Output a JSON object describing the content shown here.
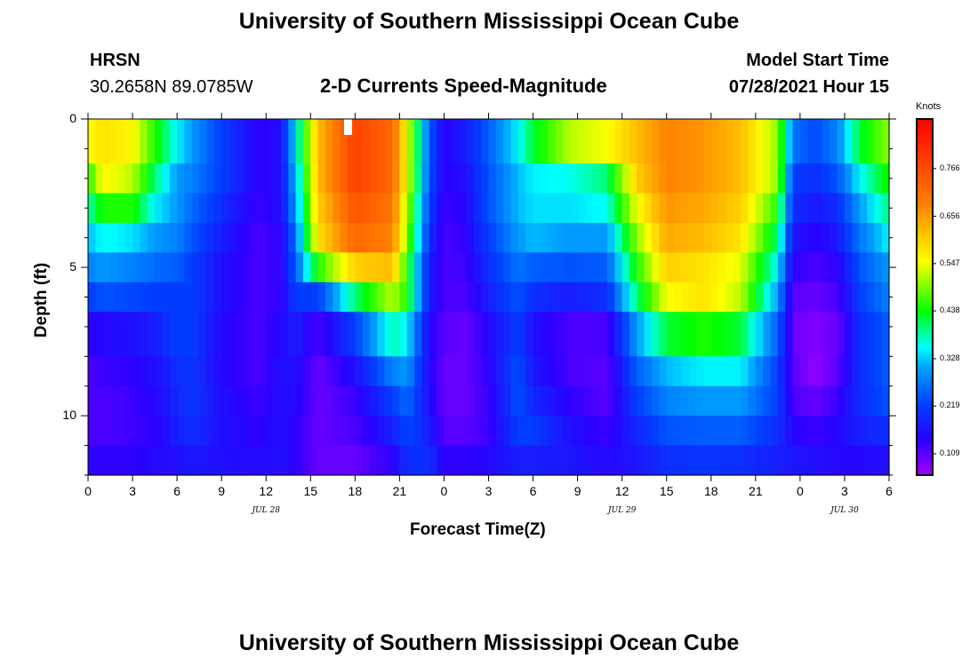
{
  "header": {
    "title": "University of Southern Mississippi Ocean Cube",
    "station": "HRSN",
    "coords": "30.2658N  89.0785W",
    "product": "2-D Currents Speed-Magnitude",
    "model_start_label": "Model Start Time",
    "model_start_value": "07/28/2021 Hour 15"
  },
  "footer": {
    "title": "University of Southern Mississippi Ocean Cube"
  },
  "chart_data": {
    "type": "heatmap",
    "title": "2-D Currents Speed-Magnitude",
    "xlabel": "Forecast Time(Z)",
    "ylabel": "Depth (ft)",
    "x_range_hours": [
      0,
      54
    ],
    "x_ticks": [
      "0",
      "3",
      "6",
      "9",
      "12",
      "15",
      "18",
      "21",
      "0",
      "3",
      "6",
      "9",
      "12",
      "15",
      "18",
      "21",
      "0",
      "3",
      "6"
    ],
    "date_labels": [
      {
        "text": "JUL 28",
        "hour": 12
      },
      {
        "text": "JUL 29",
        "hour": 36
      },
      {
        "text": "JUL 30",
        "hour": 51
      }
    ],
    "y_range_ft": [
      0,
      12
    ],
    "y_ticks": [
      0,
      5,
      10
    ],
    "colorbar": {
      "units": "Knots",
      "range": [
        0.06,
        0.88
      ],
      "labels": [
        "0.766",
        "0.656",
        "0.547",
        "0.438",
        "0.328",
        "0.219",
        "0.109"
      ]
    },
    "depth_bins_ft": [
      0,
      1.5,
      2.5,
      3.5,
      4.5,
      5.5,
      6.5,
      8.0,
      9.0,
      10.0,
      11.0,
      12.0
    ],
    "x_anchor_hours": [
      0,
      1,
      3,
      4.5,
      6,
      7,
      9,
      11.5,
      13,
      14,
      15.5,
      18,
      20.5,
      21.5,
      23,
      24,
      25.5,
      27,
      29,
      30,
      32.5,
      35,
      37,
      39,
      41.5,
      44,
      46.5,
      47.5,
      49,
      50.5,
      52,
      54
    ],
    "speed_grid_knots": [
      [
        0.55,
        0.58,
        0.56,
        0.45,
        0.35,
        0.3,
        0.22,
        0.14,
        0.16,
        0.35,
        0.62,
        0.78,
        0.72,
        0.55,
        0.25,
        0.14,
        0.18,
        0.25,
        0.35,
        0.42,
        0.52,
        0.55,
        0.62,
        0.68,
        0.66,
        0.62,
        0.5,
        0.27,
        0.23,
        0.28,
        0.42,
        0.5
      ],
      [
        0.45,
        0.56,
        0.52,
        0.4,
        0.3,
        0.28,
        0.22,
        0.14,
        0.16,
        0.32,
        0.62,
        0.78,
        0.72,
        0.55,
        0.24,
        0.14,
        0.16,
        0.24,
        0.32,
        0.35,
        0.36,
        0.4,
        0.6,
        0.68,
        0.66,
        0.62,
        0.5,
        0.22,
        0.2,
        0.24,
        0.35,
        0.45
      ],
      [
        0.38,
        0.45,
        0.45,
        0.35,
        0.3,
        0.26,
        0.2,
        0.13,
        0.16,
        0.3,
        0.6,
        0.75,
        0.7,
        0.52,
        0.22,
        0.13,
        0.15,
        0.24,
        0.32,
        0.34,
        0.34,
        0.36,
        0.55,
        0.66,
        0.64,
        0.6,
        0.45,
        0.2,
        0.17,
        0.2,
        0.3,
        0.4
      ],
      [
        0.32,
        0.36,
        0.34,
        0.3,
        0.28,
        0.24,
        0.18,
        0.12,
        0.14,
        0.27,
        0.58,
        0.72,
        0.68,
        0.5,
        0.2,
        0.12,
        0.14,
        0.22,
        0.3,
        0.32,
        0.3,
        0.3,
        0.5,
        0.64,
        0.62,
        0.58,
        0.4,
        0.17,
        0.14,
        0.17,
        0.27,
        0.35
      ],
      [
        0.28,
        0.3,
        0.28,
        0.26,
        0.25,
        0.22,
        0.16,
        0.12,
        0.14,
        0.25,
        0.45,
        0.6,
        0.62,
        0.45,
        0.18,
        0.12,
        0.13,
        0.2,
        0.27,
        0.25,
        0.24,
        0.25,
        0.45,
        0.6,
        0.58,
        0.54,
        0.35,
        0.14,
        0.12,
        0.14,
        0.24,
        0.3
      ],
      [
        0.22,
        0.24,
        0.23,
        0.22,
        0.22,
        0.22,
        0.16,
        0.12,
        0.14,
        0.22,
        0.22,
        0.4,
        0.52,
        0.45,
        0.18,
        0.12,
        0.12,
        0.18,
        0.24,
        0.2,
        0.18,
        0.2,
        0.4,
        0.55,
        0.58,
        0.52,
        0.3,
        0.11,
        0.1,
        0.12,
        0.22,
        0.28
      ],
      [
        0.14,
        0.15,
        0.16,
        0.18,
        0.22,
        0.22,
        0.15,
        0.12,
        0.15,
        0.18,
        0.12,
        0.22,
        0.38,
        0.35,
        0.15,
        0.11,
        0.1,
        0.15,
        0.22,
        0.16,
        0.12,
        0.12,
        0.3,
        0.42,
        0.45,
        0.42,
        0.25,
        0.1,
        0.08,
        0.1,
        0.2,
        0.25
      ],
      [
        0.12,
        0.13,
        0.14,
        0.16,
        0.2,
        0.21,
        0.15,
        0.12,
        0.16,
        0.16,
        0.1,
        0.16,
        0.28,
        0.3,
        0.15,
        0.1,
        0.1,
        0.14,
        0.24,
        0.17,
        0.12,
        0.11,
        0.25,
        0.32,
        0.35,
        0.35,
        0.22,
        0.11,
        0.07,
        0.11,
        0.2,
        0.25
      ],
      [
        0.12,
        0.12,
        0.13,
        0.15,
        0.19,
        0.21,
        0.16,
        0.13,
        0.16,
        0.15,
        0.1,
        0.13,
        0.22,
        0.26,
        0.16,
        0.1,
        0.1,
        0.13,
        0.24,
        0.19,
        0.14,
        0.11,
        0.22,
        0.28,
        0.3,
        0.3,
        0.22,
        0.12,
        0.1,
        0.13,
        0.2,
        0.24
      ],
      [
        0.12,
        0.12,
        0.13,
        0.14,
        0.18,
        0.2,
        0.16,
        0.14,
        0.16,
        0.14,
        0.1,
        0.12,
        0.18,
        0.23,
        0.18,
        0.11,
        0.11,
        0.13,
        0.22,
        0.22,
        0.16,
        0.13,
        0.19,
        0.24,
        0.25,
        0.25,
        0.2,
        0.15,
        0.13,
        0.15,
        0.18,
        0.2
      ],
      [
        0.14,
        0.14,
        0.14,
        0.15,
        0.16,
        0.17,
        0.16,
        0.15,
        0.16,
        0.14,
        0.1,
        0.1,
        0.14,
        0.2,
        0.2,
        0.14,
        0.14,
        0.15,
        0.18,
        0.18,
        0.17,
        0.15,
        0.17,
        0.2,
        0.21,
        0.2,
        0.18,
        0.17,
        0.16,
        0.15,
        0.15,
        0.16
      ],
      [
        0.16,
        0.15,
        0.14,
        0.15,
        0.16,
        0.16,
        0.15,
        0.14,
        0.14,
        0.12,
        0.08,
        0.07,
        0.11,
        0.18,
        0.22,
        0.19,
        0.16,
        0.15,
        0.15,
        0.15,
        0.15,
        0.16,
        0.18,
        0.2,
        0.2,
        0.19,
        0.17,
        0.16,
        0.15,
        0.15,
        0.15,
        0.15
      ]
    ]
  }
}
